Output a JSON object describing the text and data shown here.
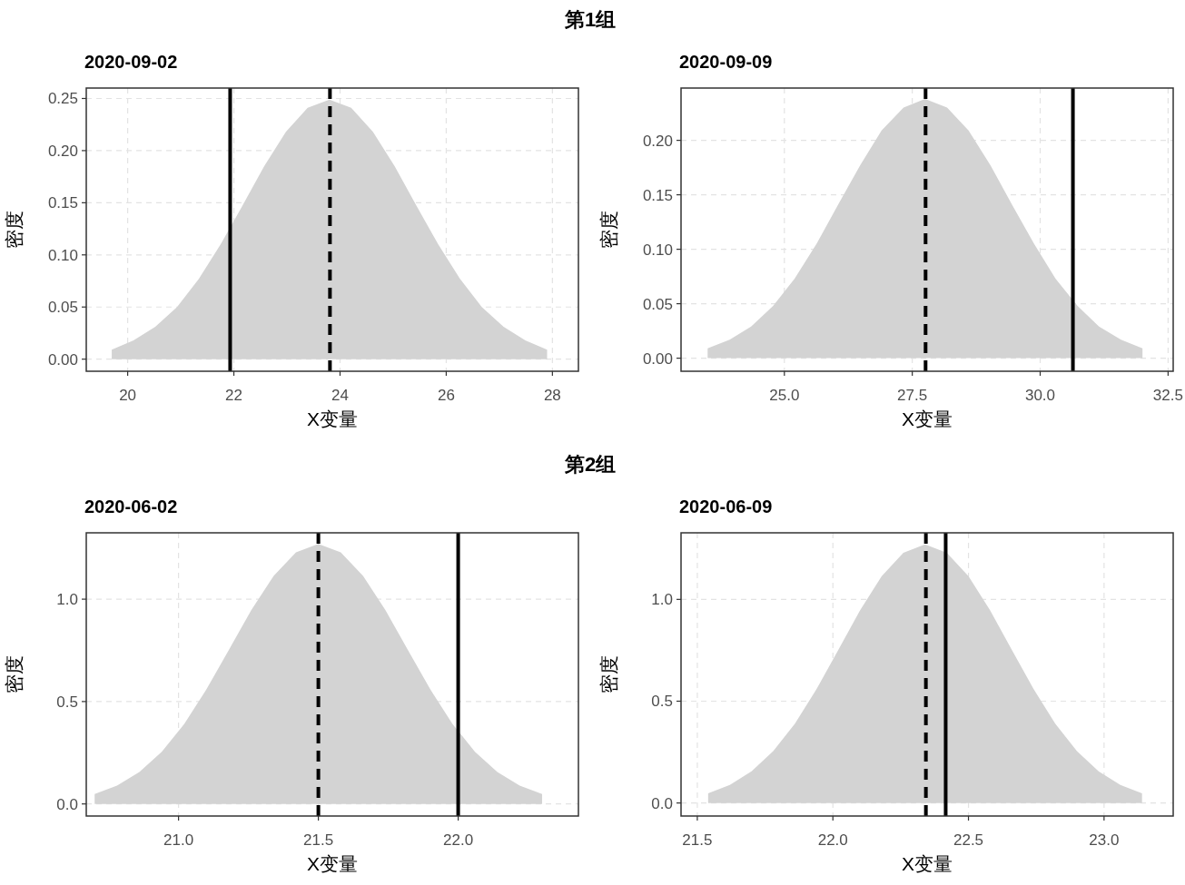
{
  "chart_data": [
    {
      "type": "area",
      "title": "2020-09-02",
      "annotations": [
        "第1组"
      ],
      "xlabel": "X变量",
      "ylabel": "密度",
      "grid": true,
      "x": [
        19.7,
        20.11,
        20.52,
        20.93,
        21.34,
        21.75,
        22.16,
        22.57,
        22.98,
        23.39,
        23.8,
        24.21,
        24.62,
        25.03,
        25.44,
        25.85,
        26.26,
        26.67,
        27.08,
        27.49,
        27.9
      ],
      "series": [
        {
          "color": "#d3d3d3",
          "values": [
            0.009,
            0.018,
            0.031,
            0.05,
            0.077,
            0.11,
            0.147,
            0.185,
            0.218,
            0.241,
            0.249,
            0.241,
            0.218,
            0.185,
            0.147,
            0.11,
            0.077,
            0.05,
            0.031,
            0.018,
            0.009
          ]
        }
      ],
      "xlim": [
        19.22,
        28.49
      ],
      "ylim": [
        -0.0116,
        0.26
      ],
      "xticks": [
        20,
        22,
        24,
        26,
        28
      ],
      "yticks": [
        {
          "value": 0,
          "label": "0.00"
        },
        0.05,
        {
          "value": 0.1,
          "label": "0.10"
        },
        0.15,
        {
          "value": 0.2,
          "label": "0.20"
        },
        0.25
      ],
      "ref_lines": [
        {
          "axis": "x",
          "value": 23.81,
          "line_style": "dashed",
          "color": "#000000"
        },
        {
          "axis": "x",
          "value": 21.93,
          "line_style": "solid",
          "color": "#000000"
        }
      ]
    },
    {
      "type": "area",
      "title": "2020-09-09",
      "xlabel": "X变量",
      "ylabel": "密度",
      "grid": true,
      "x": [
        23.5,
        23.93,
        24.35,
        24.78,
        25.2,
        25.63,
        26.05,
        26.48,
        26.9,
        27.33,
        27.75,
        28.18,
        28.6,
        29.03,
        29.45,
        29.88,
        30.3,
        30.73,
        31.15,
        31.58,
        32.0
      ],
      "series": [
        {
          "color": "#d3d3d3",
          "values": [
            0.009,
            0.017,
            0.029,
            0.048,
            0.073,
            0.105,
            0.141,
            0.177,
            0.209,
            0.23,
            0.238,
            0.23,
            0.209,
            0.177,
            0.141,
            0.105,
            0.073,
            0.048,
            0.029,
            0.017,
            0.009
          ]
        }
      ],
      "xlim": [
        22.98,
        32.6
      ],
      "ylim": [
        -0.012,
        0.248
      ],
      "xticks": [
        {
          "value": 25,
          "label": "25.0"
        },
        27.5,
        {
          "value": 30,
          "label": "30.0"
        },
        32.5
      ],
      "yticks": [
        {
          "value": 0,
          "label": "0.00"
        },
        0.05,
        {
          "value": 0.1,
          "label": "0.10"
        },
        0.15,
        {
          "value": 0.2,
          "label": "0.20"
        }
      ],
      "ref_lines": [
        {
          "axis": "x",
          "value": 27.76,
          "line_style": "dashed",
          "color": "#000000"
        },
        {
          "axis": "x",
          "value": 30.64,
          "line_style": "solid",
          "color": "#000000"
        }
      ]
    },
    {
      "type": "area",
      "title": "2020-06-02",
      "annotations": [
        "第2组"
      ],
      "xlabel": "X变量",
      "ylabel": "密度",
      "grid": true,
      "x": [
        20.7,
        20.78,
        20.86,
        20.94,
        21.02,
        21.1,
        21.18,
        21.26,
        21.34,
        21.42,
        21.5,
        21.58,
        21.66,
        21.74,
        21.82,
        21.9,
        21.98,
        22.06,
        22.14,
        22.22,
        22.3
      ],
      "series": [
        {
          "color": "#d3d3d3",
          "values": [
            0.048,
            0.089,
            0.156,
            0.255,
            0.39,
            0.56,
            0.752,
            0.946,
            1.114,
            1.229,
            1.27,
            1.229,
            1.114,
            0.946,
            0.752,
            0.56,
            0.39,
            0.255,
            0.156,
            0.089,
            0.048
          ]
        }
      ],
      "xlim": [
        20.67,
        22.43
      ],
      "ylim": [
        -0.059,
        1.324
      ],
      "xticks": [
        {
          "value": 21,
          "label": "21.0"
        },
        21.5,
        {
          "value": 22,
          "label": "22.0"
        }
      ],
      "yticks": [
        {
          "value": 0,
          "label": "0.0"
        },
        0.5,
        {
          "value": 1,
          "label": "1.0"
        }
      ],
      "ref_lines": [
        {
          "axis": "x",
          "value": 21.5,
          "line_style": "dashed",
          "color": "#000000"
        },
        {
          "axis": "x",
          "value": 22.0,
          "line_style": "solid",
          "color": "#000000"
        }
      ]
    },
    {
      "type": "area",
      "title": "2020-06-09",
      "xlabel": "X变量",
      "ylabel": "密度",
      "grid": true,
      "x": [
        21.54,
        21.62,
        21.7,
        21.78,
        21.86,
        21.94,
        22.02,
        22.1,
        22.18,
        22.26,
        22.34,
        22.42,
        22.5,
        22.58,
        22.66,
        22.74,
        22.82,
        22.9,
        22.98,
        23.06,
        23.14
      ],
      "series": [
        {
          "color": "#d3d3d3",
          "values": [
            0.048,
            0.089,
            0.156,
            0.255,
            0.39,
            0.56,
            0.752,
            0.946,
            1.114,
            1.229,
            1.27,
            1.229,
            1.114,
            0.946,
            0.752,
            0.56,
            0.39,
            0.255,
            0.156,
            0.089,
            0.048
          ]
        }
      ],
      "xlim": [
        21.44,
        23.255
      ],
      "ylim": [
        -0.064,
        1.327
      ],
      "xticks": [
        21.5,
        {
          "value": 22,
          "label": "22.0"
        },
        22.5,
        {
          "value": 23,
          "label": "23.0"
        }
      ],
      "yticks": [
        {
          "value": 0,
          "label": "0.0"
        },
        0.5,
        {
          "value": 1,
          "label": "1.0"
        }
      ],
      "ref_lines": [
        {
          "axis": "x",
          "value": 22.343,
          "line_style": "dashed",
          "color": "#000000"
        },
        {
          "axis": "x",
          "value": 22.416,
          "line_style": "solid",
          "color": "#000000"
        }
      ]
    }
  ]
}
